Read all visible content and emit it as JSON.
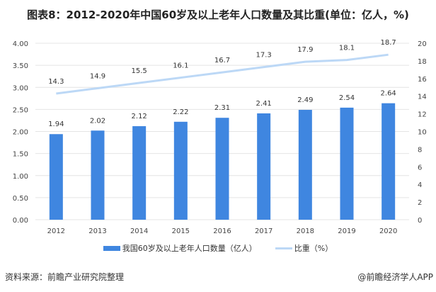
{
  "chart_data": {
    "type": "bar",
    "title": "图表8：2012-2020年中国60岁及以上老年人口数量及其比重(单位：亿人，%)",
    "categories": [
      "2012",
      "2013",
      "2014",
      "2015",
      "2016",
      "2017",
      "2018",
      "2019",
      "2020"
    ],
    "series": [
      {
        "name": "我国60岁及以上老年人口数量（亿人）",
        "type": "bar",
        "axis": "left",
        "color": "#3f86e0",
        "values": [
          1.94,
          2.02,
          2.12,
          2.22,
          2.31,
          2.41,
          2.49,
          2.54,
          2.64
        ],
        "labels": [
          "1.94",
          "2.02",
          "2.12",
          "2.22",
          "2.31",
          "2.41",
          "2.49",
          "2.54",
          "2.64"
        ]
      },
      {
        "name": "比重（%）",
        "type": "line",
        "axis": "right",
        "color": "#bcd8f6",
        "values": [
          14.3,
          14.9,
          15.5,
          16.1,
          16.7,
          17.3,
          17.9,
          18.1,
          18.7
        ],
        "labels": [
          "14.3",
          "14.9",
          "15.5",
          "16.1",
          "16.7",
          "17.3",
          "17.9",
          "18.1",
          "18.7"
        ]
      }
    ],
    "y_left": {
      "ylim": [
        0,
        4
      ],
      "ticks": [
        "0.00",
        "0.50",
        "1.00",
        "1.50",
        "2.00",
        "2.50",
        "3.00",
        "3.50",
        "4.00"
      ]
    },
    "y_right": {
      "ylim": [
        0,
        20
      ],
      "ticks": [
        "0",
        "2",
        "4",
        "6",
        "8",
        "10",
        "12",
        "14",
        "16",
        "18",
        "20"
      ]
    },
    "grid": true,
    "legend": "bottom"
  },
  "footer": {
    "source": "资料来源：前瞻产业研究院整理",
    "brand": "@前瞻经济学人APP"
  }
}
